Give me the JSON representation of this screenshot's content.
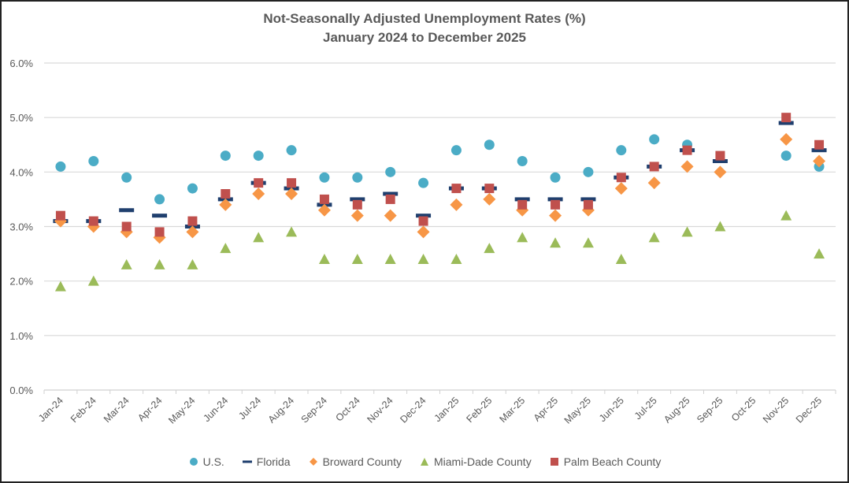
{
  "chart_data": {
    "type": "scatter",
    "title": "Not-Seasonally Adjusted Unemployment Rates (%)",
    "subtitle": "January 2024 to December 2025",
    "xlabel": "",
    "ylabel": "",
    "ylim": [
      0,
      6
    ],
    "yticks": [
      "0.0%",
      "1.0%",
      "2.0%",
      "3.0%",
      "4.0%",
      "5.0%",
      "6.0%"
    ],
    "ytick_values": [
      0,
      1,
      2,
      3,
      4,
      5,
      6
    ],
    "grid": true,
    "legend_position": "bottom",
    "categories": [
      "Jan-24",
      "Feb-24",
      "Mar-24",
      "Apr-24",
      "May-24",
      "Jun-24",
      "Jul-24",
      "Aug-24",
      "Sep-24",
      "Oct-24",
      "Nov-24",
      "Dec-24",
      "Jan-25",
      "Feb-25",
      "Mar-25",
      "Apr-25",
      "May-25",
      "Jun-25",
      "Jul-25",
      "Aug-25",
      "Sep-25",
      "Oct-25",
      "Nov-25",
      "Dec-25"
    ],
    "series": [
      {
        "name": "U.S.",
        "marker": "circle",
        "color": "#4BACC6",
        "values": [
          4.1,
          4.2,
          3.9,
          3.5,
          3.7,
          4.3,
          4.3,
          4.4,
          3.9,
          3.9,
          4.0,
          3.8,
          4.4,
          4.5,
          4.2,
          3.9,
          4.0,
          4.4,
          4.6,
          4.5,
          null,
          null,
          4.3,
          4.1
        ]
      },
      {
        "name": "Florida",
        "marker": "dash",
        "color": "#1F3F6E",
        "values": [
          3.1,
          3.1,
          3.3,
          3.2,
          3.0,
          3.5,
          3.8,
          3.7,
          3.4,
          3.5,
          3.6,
          3.2,
          3.7,
          3.7,
          3.5,
          3.5,
          3.5,
          3.9,
          4.1,
          4.4,
          4.2,
          null,
          4.9,
          4.4
        ]
      },
      {
        "name": "Broward County",
        "marker": "diamond",
        "color": "#F79646",
        "values": [
          3.1,
          3.0,
          2.9,
          2.8,
          2.9,
          3.4,
          3.6,
          3.6,
          3.3,
          3.2,
          3.2,
          2.9,
          3.4,
          3.5,
          3.3,
          3.2,
          3.3,
          3.7,
          3.8,
          4.1,
          4.0,
          null,
          4.6,
          4.2
        ]
      },
      {
        "name": "Miami-Dade County",
        "marker": "triangle",
        "color": "#9BBB59",
        "values": [
          1.9,
          2.0,
          2.3,
          2.3,
          2.3,
          2.6,
          2.8,
          2.9,
          2.4,
          2.4,
          2.4,
          2.4,
          2.4,
          2.6,
          2.8,
          2.7,
          2.7,
          2.4,
          2.8,
          2.9,
          3.0,
          null,
          3.2,
          2.5
        ]
      },
      {
        "name": "Palm Beach County",
        "marker": "square",
        "color": "#C0504D",
        "values": [
          3.2,
          3.1,
          3.0,
          2.9,
          3.1,
          3.6,
          3.8,
          3.8,
          3.5,
          3.4,
          3.5,
          3.1,
          3.7,
          3.7,
          3.4,
          3.4,
          3.4,
          3.9,
          4.1,
          4.4,
          4.3,
          null,
          5.0,
          4.5
        ]
      }
    ]
  }
}
